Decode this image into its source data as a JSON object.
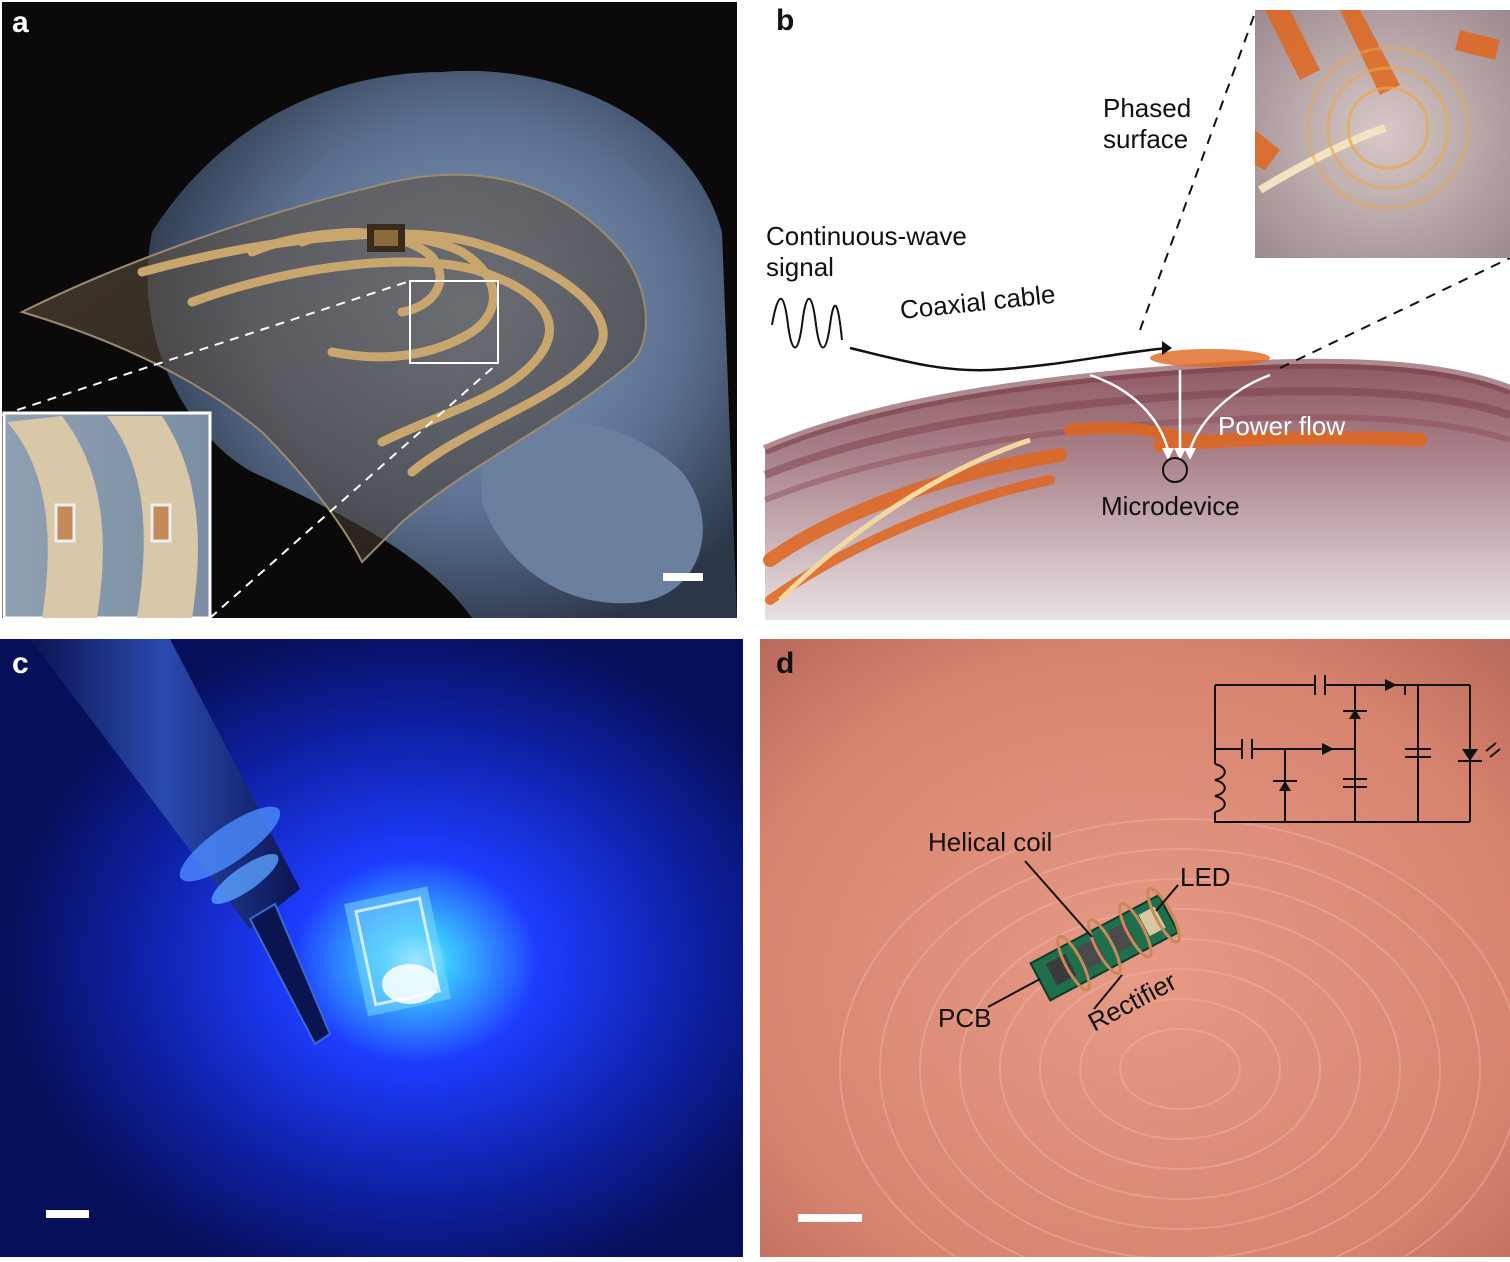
{
  "panels": {
    "a": {
      "letter": "a"
    },
    "b": {
      "letter": "b",
      "phased_surface_line1": "Phased",
      "phased_surface_line2": "surface",
      "cw_signal_line1": "Continuous-wave",
      "cw_signal_line2": "signal",
      "coaxial_cable": "Coaxial cable",
      "power_flow": "Power flow",
      "microdevice": "Microdevice"
    },
    "c": {
      "letter": "c"
    },
    "d": {
      "letter": "d",
      "helical_coil": "Helical coil",
      "led": "LED",
      "pcb": "PCB",
      "rectifier": "Rectifier"
    }
  },
  "colors": {
    "glove_blue": "#5f7594",
    "background_dark": "#0b0909",
    "copper": "#c9a66e",
    "led_blue": "#1e3cff",
    "skin": "#e0937e",
    "pcb_green": "#1f6e4c",
    "tissue_red": "#8a4a52",
    "tissue_orange": "#e0661e"
  }
}
